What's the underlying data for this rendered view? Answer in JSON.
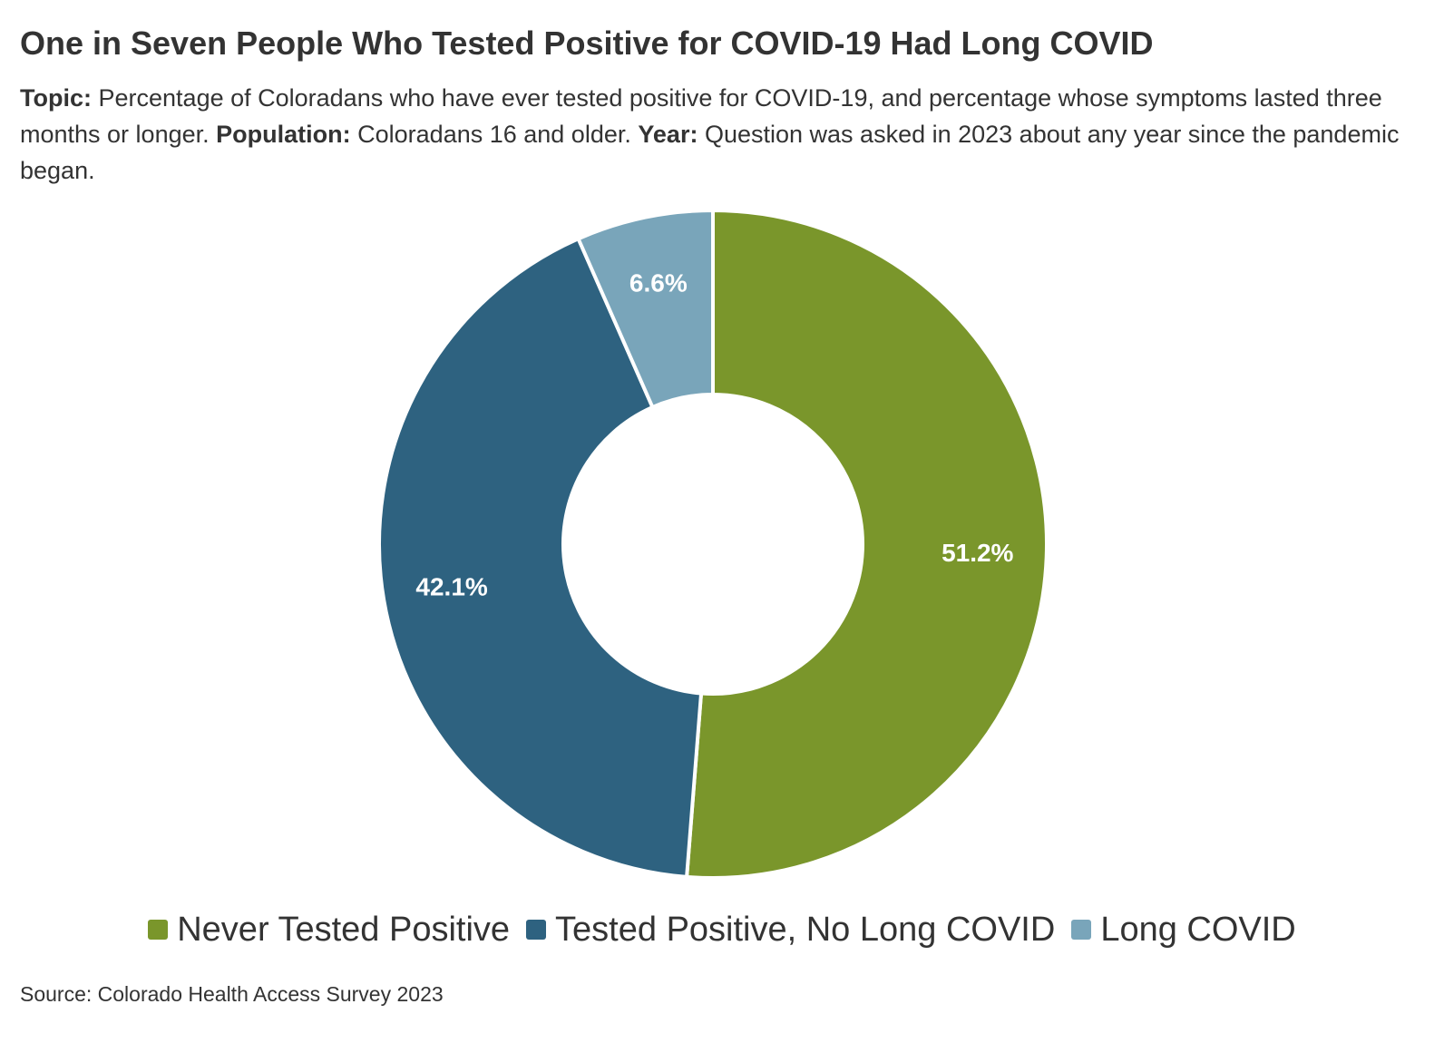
{
  "chart_data": {
    "type": "pie",
    "variant": "donut",
    "title": "One in Seven People Who Tested Positive for COVID-19 Had Long COVID",
    "subtitle": {
      "topic_label": "Topic:",
      "topic_text": "Percentage of Coloradans who have ever tested positive for COVID-19, and percentage whose symptoms lasted three months or longer.",
      "population_label": "Population:",
      "population_text": "Coloradans 16 and older.",
      "year_label": "Year:",
      "year_text": "Question was asked in 2023 about any year since the pandemic began."
    },
    "slices": [
      {
        "name": "Never Tested Positive",
        "value": 51.2,
        "label": "51.2%",
        "color": "#7a962b"
      },
      {
        "name": "Tested Positive, No Long COVID",
        "value": 42.1,
        "label": "42.1%",
        "color": "#2e6280"
      },
      {
        "name": "Long COVID",
        "value": 6.6,
        "label": "6.6%",
        "color": "#79a5ba"
      }
    ],
    "legend_position": "bottom",
    "source": "Source: Colorado Health Access Survey 2023"
  }
}
